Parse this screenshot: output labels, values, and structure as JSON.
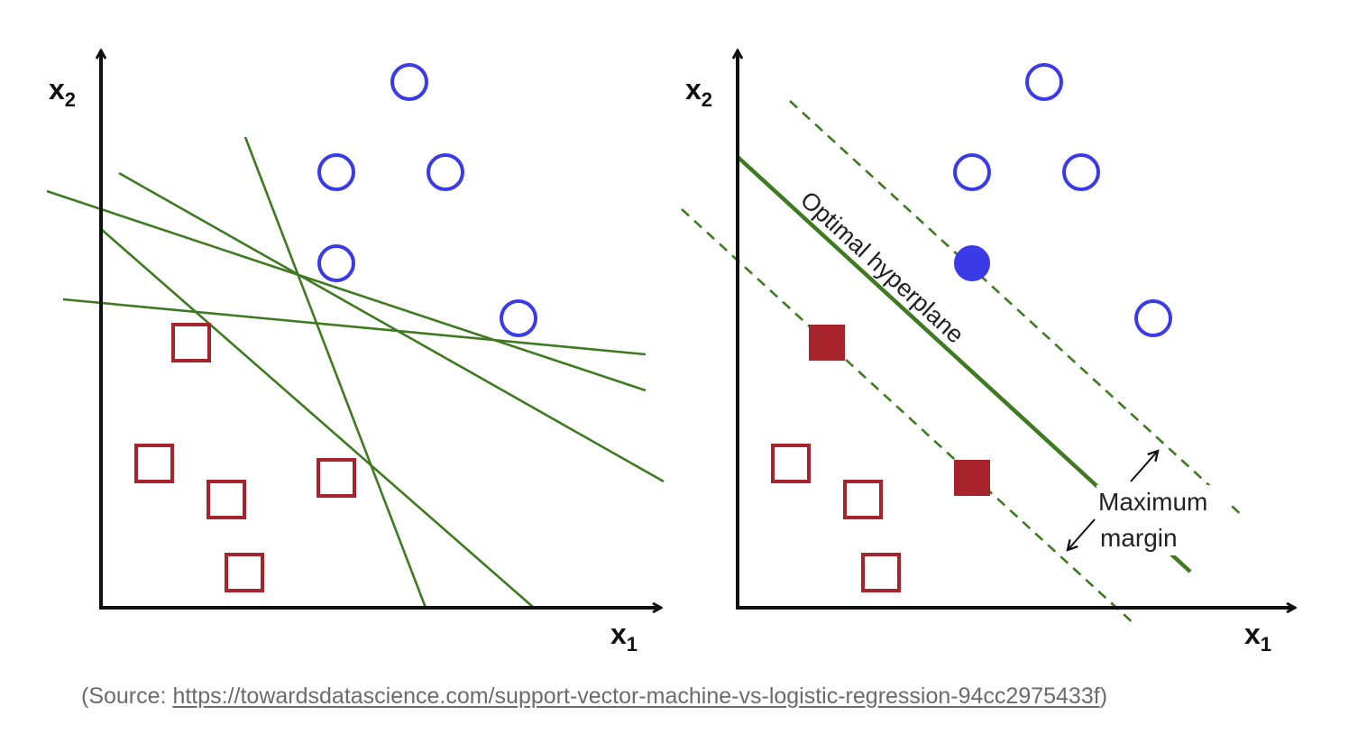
{
  "diagram": {
    "left_panel": {
      "x_axis_label": "x",
      "x_axis_subscript": "1",
      "y_axis_label": "x",
      "y_axis_subscript": "2"
    },
    "right_panel": {
      "x_axis_label": "x",
      "x_axis_subscript": "1",
      "y_axis_label": "x",
      "y_axis_subscript": "2",
      "hyperplane_label": "Optimal hyperplane",
      "margin_label_line1": "Maximum",
      "margin_label_line2": "margin"
    },
    "colors": {
      "circle": "#3a3ae6",
      "square": "#a8242c",
      "line": "#3f7a22",
      "axis": "#111111"
    }
  },
  "caption": {
    "prefix": "(Source: ",
    "link_text": "https://towardsdatascience.com/support-vector-machine-vs-logistic-regression-94cc2975433f",
    "suffix": ")"
  }
}
